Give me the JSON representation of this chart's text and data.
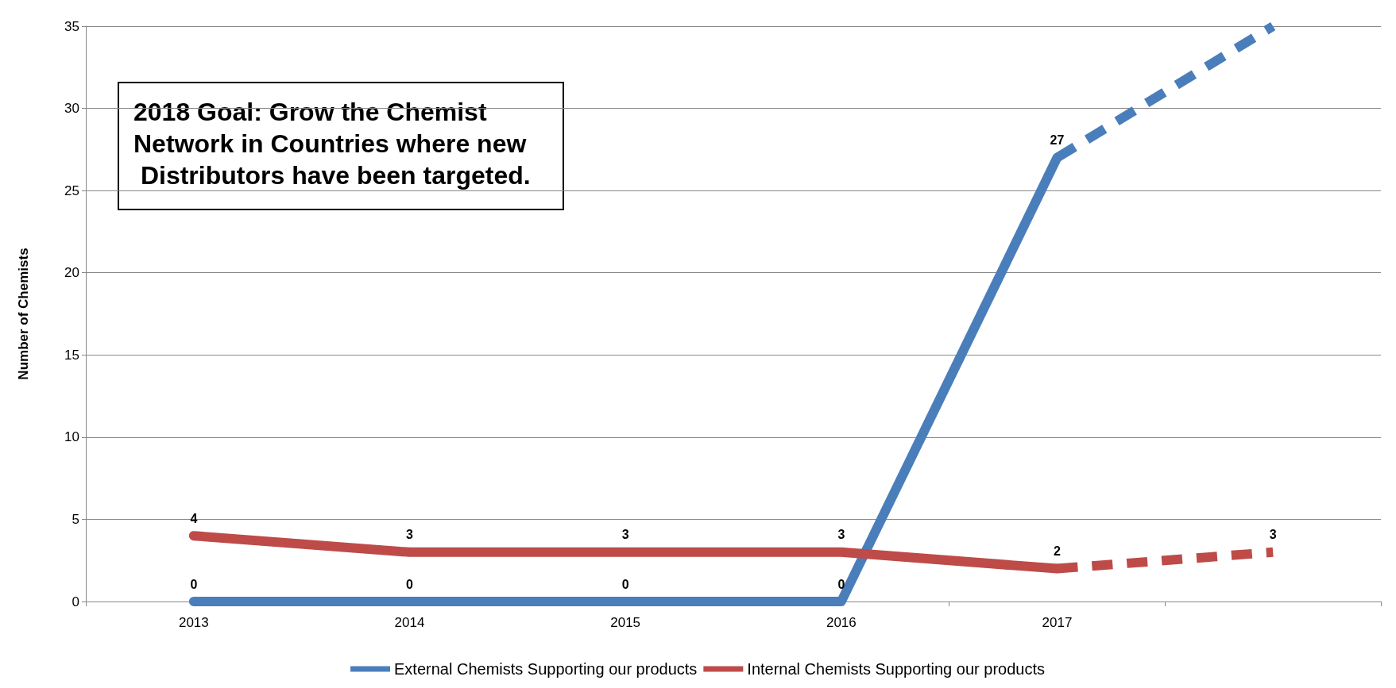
{
  "chart_data": {
    "type": "line",
    "ylabel": "Number of Chemists",
    "categories": [
      "2013",
      "2014",
      "2015",
      "2016",
      "2017",
      null
    ],
    "series": [
      {
        "name": "External Chemists Supporting our products",
        "color": "#4a7ebb",
        "values": [
          0,
          0,
          0,
          0,
          27,
          null
        ],
        "value_labels": [
          "0",
          "0",
          "0",
          "0",
          "27",
          null
        ]
      },
      {
        "name": "Internal Chemists Supporting our products",
        "color": "#be4b48",
        "values": [
          4,
          3,
          3,
          3,
          2,
          null
        ],
        "value_labels": [
          "4",
          "3",
          "3",
          "3",
          "2",
          null
        ]
      },
      {
        "color": "#4a7ebb",
        "line_style": "dashed",
        "values": [
          null,
          null,
          null,
          null,
          27,
          35
        ]
      },
      {
        "color": "#be4b48",
        "line_style": "dashed",
        "values": [
          null,
          null,
          null,
          null,
          2,
          3
        ],
        "value_labels": [
          null,
          null,
          null,
          null,
          null,
          "3"
        ]
      }
    ],
    "ylim": [
      0,
      35
    ],
    "yticks": [
      0,
      5,
      10,
      15,
      20,
      25,
      30,
      35
    ],
    "grid": "y",
    "legend": "bottom",
    "marker": "none",
    "line_style": "solid",
    "annotations": [
      "2018 Goal: Grow the Chemist Network in Countries where new Distributors have been targeted."
    ]
  }
}
